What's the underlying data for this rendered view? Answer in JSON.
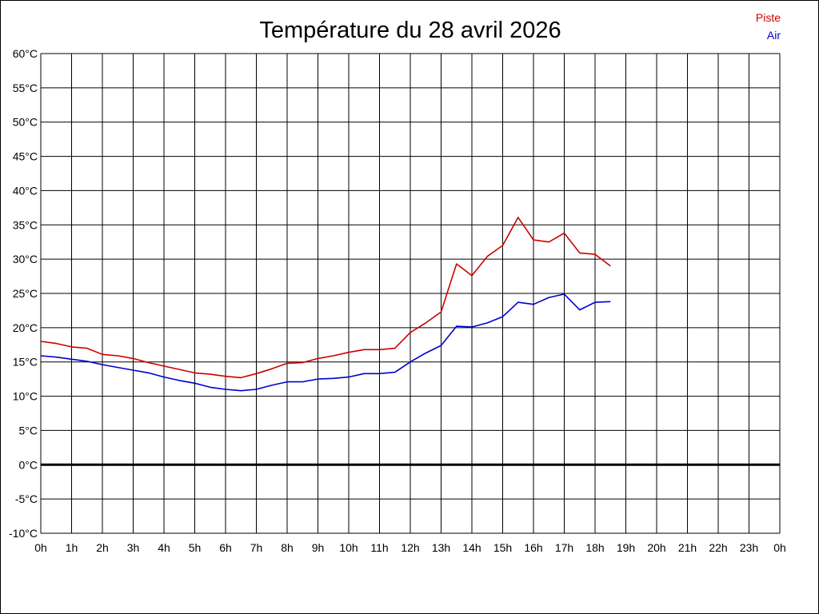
{
  "chart_data": {
    "type": "line",
    "title": "Température du 28 avril 2026",
    "xlabel": "",
    "ylabel": "",
    "x_tick_labels": [
      "0h",
      "1h",
      "2h",
      "3h",
      "4h",
      "5h",
      "6h",
      "7h",
      "8h",
      "9h",
      "10h",
      "11h",
      "12h",
      "13h",
      "14h",
      "15h",
      "16h",
      "17h",
      "18h",
      "19h",
      "20h",
      "21h",
      "22h",
      "23h",
      "0h"
    ],
    "xlim": [
      0,
      24
    ],
    "y_tick_labels": [
      "60°C",
      "55°C",
      "50°C",
      "45°C",
      "40°C",
      "35°C",
      "30°C",
      "25°C",
      "20°C",
      "15°C",
      "10°C",
      "5°C",
      "0°C",
      "-5°C",
      "-10°C"
    ],
    "ylim": [
      -10,
      60
    ],
    "y_step": 5,
    "grid": true,
    "zero_line": true,
    "legend_position": "top-right",
    "series": [
      {
        "name": "Piste",
        "color": "#cc0000",
        "x": [
          0,
          0.5,
          1,
          1.5,
          2,
          2.5,
          3,
          3.5,
          4,
          4.5,
          5,
          5.5,
          6,
          6.5,
          7,
          7.5,
          8,
          8.5,
          9,
          9.5,
          10,
          10.5,
          11,
          11.5,
          12,
          12.5,
          13,
          13.5,
          14,
          14.5,
          15,
          15.5,
          16,
          16.5,
          17,
          17.5,
          18,
          18.5
        ],
        "y": [
          18,
          17.7,
          17.2,
          17,
          16.1,
          15.9,
          15.5,
          14.9,
          14.4,
          13.9,
          13.4,
          13.2,
          12.9,
          12.7,
          13.3,
          14.0,
          14.8,
          14.9,
          15.5,
          15.9,
          16.4,
          16.8,
          16.8,
          17.0,
          19.3,
          20.7,
          22.3,
          29.3,
          27.6,
          30.4,
          32.0,
          36.1,
          32.8,
          32.5,
          33.8,
          30.9,
          30.7,
          29.0
        ]
      },
      {
        "name": "Air",
        "color": "#0000cc",
        "x": [
          0,
          0.5,
          1,
          1.5,
          2,
          2.5,
          3,
          3.5,
          4,
          4.5,
          5,
          5.5,
          6,
          6.5,
          7,
          7.5,
          8,
          8.5,
          9,
          9.5,
          10,
          10.5,
          11,
          11.5,
          12,
          12.5,
          13,
          13.5,
          14,
          14.5,
          15,
          15.5,
          16,
          16.5,
          17,
          17.5,
          18,
          18.5
        ],
        "y": [
          15.9,
          15.7,
          15.4,
          15.1,
          14.6,
          14.2,
          13.8,
          13.4,
          12.8,
          12.3,
          11.9,
          11.3,
          11.0,
          10.8,
          11.0,
          11.6,
          12.1,
          12.1,
          12.5,
          12.6,
          12.8,
          13.3,
          13.3,
          13.5,
          15.0,
          16.3,
          17.4,
          20.2,
          20.1,
          20.7,
          21.6,
          23.7,
          23.4,
          24.4,
          24.9,
          22.6,
          23.7,
          23.8
        ]
      }
    ]
  }
}
